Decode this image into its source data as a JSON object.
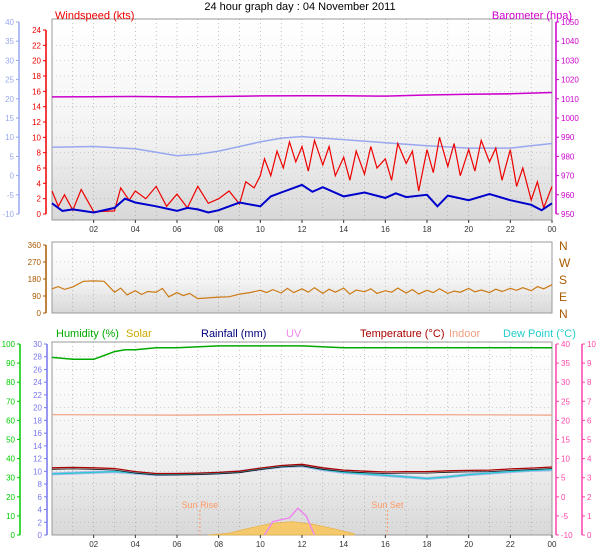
{
  "title": "24 hour graph day : 04 November 2011",
  "colors": {
    "windspeed": "#ee0000",
    "windspeed_avg": "#0000cc",
    "gust_band": "#99a8ee",
    "barometer": "#cc00cc",
    "direction": "#cc7a14",
    "humidity": "#00aa00",
    "solar": "#ccaa00",
    "rainfall": "#00007a",
    "uv": "#ee88ee",
    "temperature": "#aa0000",
    "indoor": "#f0a080",
    "dewpoint": "#22cccc",
    "sunmark": "#ff9966",
    "axis_humidity": "#00cc00",
    "axis_rain": "#7777ee",
    "axis_temp": "#ff44aa",
    "axis_dir": "#aa5a00"
  },
  "x_ticks": [
    "02",
    "04",
    "06",
    "08",
    "10",
    "12",
    "14",
    "16",
    "18",
    "20",
    "22",
    "00"
  ],
  "chart_data": [
    {
      "type": "line",
      "name": "wind_baro",
      "headers": {
        "left": "Windspeed (kts)",
        "right": "Barometer (hpa)"
      },
      "x_range": [
        0,
        24
      ],
      "outer_left_ticks": [
        "40",
        "35",
        "30",
        "25",
        "20",
        "15",
        "10",
        "5",
        "0",
        "-5",
        "-10"
      ],
      "left_ticks": [
        "24",
        "22",
        "20",
        "18",
        "16",
        "14",
        "12",
        "10",
        "8",
        "6",
        "4",
        "2",
        "0"
      ],
      "left_range": [
        0,
        24
      ],
      "right_ticks": [
        "1050",
        "1040",
        "1030",
        "1020",
        "1010",
        "1000",
        "990",
        "980",
        "970",
        "960",
        "950"
      ],
      "right_range": [
        950,
        1050
      ],
      "barometer_x": [
        0,
        2,
        4,
        6,
        8,
        10,
        12,
        14,
        16,
        18,
        20,
        22,
        24
      ],
      "barometer": [
        1011.0,
        1011.1,
        1011.2,
        1011.0,
        1011.2,
        1011.5,
        1011.6,
        1011.6,
        1011.4,
        1012.0,
        1012.4,
        1012.6,
        1013.3
      ],
      "gust_x": [
        0,
        2,
        4,
        6,
        7,
        8,
        9,
        10,
        11,
        12,
        13,
        14,
        16,
        18,
        20,
        22,
        23,
        24
      ],
      "gust": [
        8.7,
        8.8,
        8.5,
        7.6,
        7.8,
        8.2,
        8.8,
        9.4,
        9.9,
        10.1,
        9.9,
        9.7,
        9.3,
        8.9,
        8.6,
        8.6,
        8.9,
        9.2
      ],
      "windavg_x": [
        0,
        0.5,
        1,
        2,
        3,
        3.5,
        4,
        5,
        6,
        6.5,
        7,
        7.5,
        8,
        9,
        10,
        10.5,
        11,
        12,
        12.5,
        13,
        14,
        15,
        16,
        16.5,
        17,
        18,
        18.5,
        19,
        20,
        21,
        22,
        23,
        23.5,
        24
      ],
      "windavg": [
        1.4,
        0.4,
        0.6,
        0.2,
        0.8,
        2.0,
        1.5,
        1.0,
        0.4,
        0.8,
        0.6,
        0.2,
        0.5,
        1.5,
        1.0,
        2.3,
        2.8,
        3.8,
        2.9,
        3.5,
        2.3,
        2.8,
        2.1,
        2.7,
        2.2,
        2.5,
        1.0,
        2.4,
        1.8,
        2.6,
        1.8,
        1.2,
        0.5,
        1.4
      ],
      "wind_x": [
        0,
        0.3,
        0.6,
        1,
        1.4,
        2,
        3,
        3.3,
        3.7,
        4,
        4.5,
        5,
        5.5,
        6,
        6.5,
        7,
        7.5,
        8,
        8.5,
        9,
        9.3,
        9.7,
        10,
        10.2,
        10.5,
        10.8,
        11.1,
        11.4,
        11.7,
        12,
        12.3,
        12.6,
        13,
        13.3,
        13.6,
        14,
        14.3,
        14.6,
        15,
        15.3,
        15.6,
        16,
        16.3,
        16.6,
        17,
        17.3,
        17.6,
        18,
        18.3,
        18.6,
        19,
        19.3,
        19.6,
        20,
        20.3,
        20.6,
        21,
        21.3,
        21.6,
        22,
        22.3,
        22.6,
        23,
        23.3,
        23.6,
        24
      ],
      "wind": [
        3.0,
        1.0,
        2.5,
        0.5,
        3.2,
        0.3,
        0.4,
        3.4,
        1.8,
        3.0,
        2.0,
        3.6,
        1.0,
        2.6,
        0.8,
        3.6,
        1.4,
        2.0,
        3.0,
        1.3,
        4.2,
        3.4,
        5.0,
        7.2,
        5.0,
        8.2,
        6.0,
        9.4,
        6.8,
        8.8,
        5.6,
        9.6,
        6.4,
        8.8,
        5.0,
        7.4,
        4.4,
        8.2,
        5.2,
        8.8,
        6.0,
        7.2,
        4.4,
        9.2,
        6.6,
        8.2,
        3.0,
        8.4,
        5.4,
        10.0,
        6.2,
        9.2,
        5.0,
        8.4,
        5.6,
        9.6,
        6.8,
        8.6,
        4.4,
        8.4,
        3.6,
        6.0,
        1.8,
        4.2,
        0.8,
        3.6
      ]
    },
    {
      "type": "line",
      "name": "wind_direction",
      "x_range": [
        0,
        24
      ],
      "left_ticks": [
        "360",
        "270",
        "180",
        "90",
        "0"
      ],
      "left_range": [
        0,
        360
      ],
      "right_ticks": [
        "N",
        "W",
        "S",
        "E",
        "N"
      ],
      "x": [
        0,
        0.3,
        0.6,
        1,
        1.5,
        2,
        2.5,
        3,
        3.3,
        3.6,
        4,
        4.3,
        4.6,
        5,
        5.3,
        5.6,
        6,
        6.3,
        6.6,
        7,
        7.5,
        8,
        8.5,
        9,
        9.5,
        10,
        10.3,
        10.6,
        11,
        11.3,
        11.6,
        12,
        12.3,
        12.6,
        13,
        13.3,
        13.6,
        14,
        14.3,
        14.6,
        15,
        15.3,
        15.6,
        16,
        16.3,
        16.6,
        17,
        17.3,
        17.6,
        18,
        18.3,
        18.6,
        19,
        19.3,
        19.6,
        20,
        20.3,
        20.6,
        21,
        21.3,
        21.6,
        22,
        22.3,
        22.6,
        23,
        23.3,
        23.6,
        24
      ],
      "values": [
        128,
        140,
        125,
        138,
        168,
        170,
        168,
        110,
        132,
        96,
        118,
        98,
        114,
        110,
        130,
        86,
        108,
        92,
        104,
        76,
        80,
        84,
        86,
        100,
        108,
        120,
        108,
        124,
        106,
        130,
        108,
        128,
        110,
        134,
        104,
        126,
        110,
        132,
        100,
        122,
        112,
        128,
        104,
        118,
        110,
        132,
        106,
        124,
        100,
        120,
        108,
        128,
        104,
        116,
        110,
        130,
        112,
        122,
        108,
        126,
        114,
        130,
        120,
        134,
        118,
        140,
        128,
        150
      ]
    },
    {
      "type": "line",
      "name": "weather",
      "headers": {
        "humidity": "Humidity (%)",
        "solar": "Solar",
        "rainfall": "Rainfall (mm)",
        "uv": "UV",
        "temperature": "Temperature (°C)",
        "indoor": "Indoor",
        "dewpoint": "Dew Point (°C)"
      },
      "x_range": [
        0,
        24
      ],
      "humidity_ticks": [
        "100",
        "90",
        "80",
        "70",
        "60",
        "50",
        "40",
        "30",
        "20",
        "10",
        "0"
      ],
      "humidity_range": [
        0,
        100
      ],
      "rain_ticks": [
        "30",
        "28",
        "26",
        "24",
        "22",
        "20",
        "18",
        "16",
        "14",
        "12",
        "10",
        "8",
        "6",
        "4",
        "2",
        "0"
      ],
      "rain_range": [
        0,
        30
      ],
      "temp_ticks": [
        "40",
        "35",
        "30",
        "25",
        "20",
        "15",
        "10",
        "5",
        "0",
        "-5",
        "-10"
      ],
      "temp_range": [
        -10,
        40
      ],
      "uv_ticks": [
        "10",
        "9",
        "8",
        "7",
        "6",
        "5",
        "4",
        "3",
        "2",
        "1",
        "0"
      ],
      "uv_range": [
        0,
        10
      ],
      "sun_rise": {
        "label": "Sun Rise",
        "x": 7.1
      },
      "sun_set": {
        "label": "Sun Set",
        "x": 16.1
      },
      "humidity_x": [
        0,
        1,
        2,
        2.5,
        3,
        3.5,
        4,
        5,
        6,
        8,
        10,
        12,
        14,
        16,
        18,
        20,
        22,
        24
      ],
      "humidity": [
        93,
        92,
        92,
        94,
        96,
        97,
        97,
        98,
        98,
        99,
        99,
        99,
        98,
        98,
        98,
        98,
        98,
        98
      ],
      "indoor_x": [
        0,
        6,
        12,
        18,
        24
      ],
      "indoor": [
        21.5,
        21.4,
        21.6,
        21.5,
        21.4
      ],
      "temperature_x": [
        0,
        1,
        2,
        3,
        4,
        5,
        6,
        7,
        8,
        9,
        10,
        11,
        12,
        13,
        14,
        15,
        16,
        17,
        18,
        19,
        20,
        21,
        22,
        23,
        24
      ],
      "temperature": [
        7.6,
        7.7,
        7.6,
        7.4,
        6.6,
        6.1,
        6.1,
        6.2,
        6.4,
        6.7,
        7.5,
        8.2,
        8.5,
        7.6,
        7.0,
        6.7,
        6.5,
        6.6,
        6.6,
        6.8,
        6.9,
        7.0,
        7.3,
        7.5,
        7.8
      ],
      "dewpoint_x": [
        0,
        1,
        2,
        3,
        4,
        5,
        6,
        7,
        8,
        9,
        10,
        11,
        12,
        13,
        14,
        15,
        16,
        17,
        18,
        19,
        20,
        21,
        22,
        23,
        24
      ],
      "dewpoint": [
        6.0,
        6.2,
        6.4,
        6.6,
        6.2,
        5.8,
        5.9,
        6.0,
        6.2,
        6.6,
        7.3,
        7.9,
        8.1,
        7.1,
        6.4,
        6.0,
        5.6,
        5.2,
        4.8,
        5.2,
        5.8,
        6.2,
        6.6,
        6.9,
        7.1
      ],
      "solar_x": [
        7.5,
        8.5,
        9.5,
        10.5,
        11.5,
        12.5,
        13.5,
        14.5
      ],
      "solar": [
        0,
        0.3,
        1.1,
        1.8,
        2.1,
        1.7,
        1.0,
        0.2
      ],
      "uv_x": [
        10.2,
        10.6,
        11,
        11.4,
        11.8,
        12.2,
        12.6
      ],
      "uv": [
        0,
        0.7,
        0.8,
        0.9,
        1.4,
        1.0,
        0
      ]
    }
  ]
}
